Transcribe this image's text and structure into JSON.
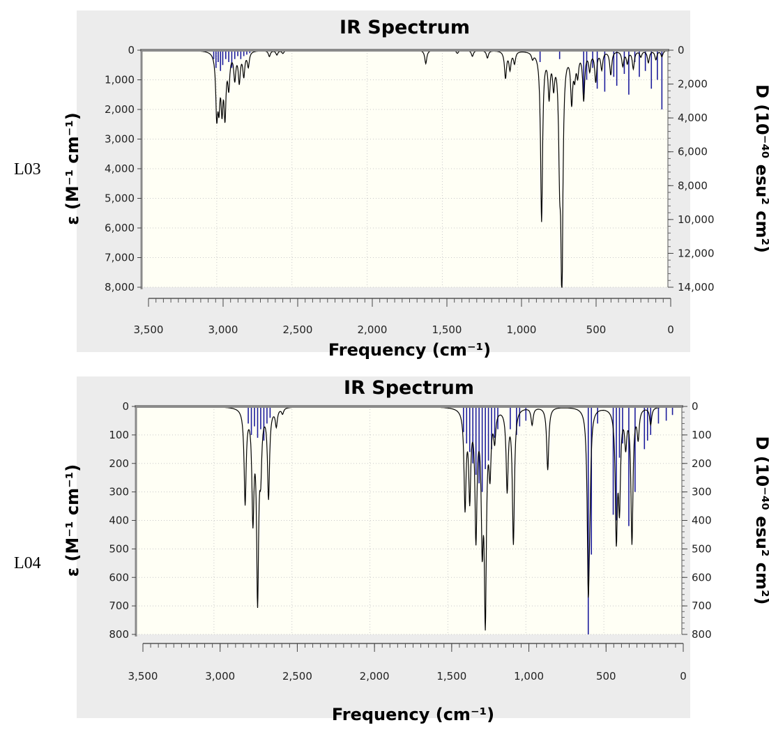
{
  "chart_data": [
    {
      "type": "line",
      "side_label": "L03",
      "title": "IR Spectrum",
      "xlabel": "Frequency (cm⁻¹)",
      "ylabel": "ε (M⁻¹ cm⁻¹)",
      "y2label": "D (10⁻⁴⁰ esu² cm²)",
      "xlim": [
        3500,
        0
      ],
      "ylim": [
        0,
        8000
      ],
      "y2lim": [
        0,
        14000
      ],
      "x_ticks": [
        "3,500",
        "3,000",
        "2,500",
        "2,000",
        "1,500",
        "1,000",
        "500",
        "0"
      ],
      "y_ticks": [
        "0",
        "1,000",
        "2,000",
        "3,000",
        "4,000",
        "5,000",
        "6,000",
        "7,000",
        "8,000"
      ],
      "y2_ticks": [
        "0",
        "2,000",
        "4,000",
        "6,000",
        "8,000",
        "10,000",
        "12,000",
        "14,000"
      ],
      "grid": true,
      "colors": {
        "spectrum": "#000000",
        "sticks": "#1c1c9c",
        "plot_bg": "#fffff5",
        "frame_bg": "#ececec"
      },
      "series": [
        {
          "name": "spectrum",
          "x": [
            3000,
            2985,
            2965,
            2945,
            2920,
            2880,
            2850,
            2820,
            2790,
            2650,
            2600,
            2560,
            1610,
            1400,
            1300,
            1200,
            1080,
            1050,
            1020,
            900,
            840,
            790,
            760,
            720,
            705,
            640,
            620,
            600,
            560,
            520,
            480,
            440,
            380,
            300,
            270,
            230,
            180,
            130,
            80,
            40
          ],
          "y": [
            2000,
            1500,
            1700,
            2000,
            1100,
            900,
            1000,
            800,
            500,
            200,
            150,
            100,
            450,
            100,
            200,
            250,
            900,
            600,
            400,
            200,
            5700,
            1400,
            1000,
            3200,
            7800,
            1600,
            700,
            700,
            1600,
            600,
            1000,
            600,
            800,
            500,
            400,
            600,
            200,
            400,
            300,
            200
          ]
        },
        {
          "name": "sticks",
          "x": [
            3020,
            3005,
            2990,
            2975,
            2960,
            2940,
            2920,
            2900,
            2880,
            2860,
            2840,
            2820,
            2800,
            2780,
            850,
            720,
            560,
            540,
            500,
            470,
            420,
            360,
            340,
            290,
            260,
            220,
            190,
            150,
            110,
            70,
            40
          ],
          "y": [
            300,
            600,
            400,
            700,
            500,
            300,
            400,
            600,
            300,
            200,
            300,
            200,
            150,
            100,
            400,
            300,
            1500,
            1000,
            600,
            1300,
            1400,
            900,
            1200,
            800,
            1500,
            400,
            900,
            700,
            1300,
            1000,
            2000
          ]
        }
      ]
    },
    {
      "type": "line",
      "side_label": "L04",
      "title": "IR Spectrum",
      "xlabel": "Frequency (cm⁻¹)",
      "ylabel": "ε (M⁻¹ cm⁻¹)",
      "y2label": "D (10⁻⁴⁰ esu² cm²)",
      "xlim": [
        3500,
        0
      ],
      "ylim": [
        0,
        800
      ],
      "y2lim": [
        0,
        800
      ],
      "x_ticks": [
        "3,500",
        "3,000",
        "2,500",
        "2,000",
        "1,500",
        "1,000",
        "500",
        "0"
      ],
      "y_ticks": [
        "0",
        "100",
        "200",
        "300",
        "400",
        "500",
        "600",
        "700",
        "800"
      ],
      "y2_ticks": [
        "0",
        "100",
        "200",
        "300",
        "400",
        "500",
        "600",
        "700",
        "800"
      ],
      "grid": true,
      "colors": {
        "spectrum": "#000000",
        "sticks": "#1c1c9c",
        "plot_bg": "#fffff5",
        "frame_bg": "#ececec"
      },
      "series": [
        {
          "name": "spectrum",
          "x": [
            2800,
            2750,
            2720,
            2700,
            2650,
            2600,
            2560,
            1390,
            1360,
            1320,
            1280,
            1260,
            1230,
            1200,
            1120,
            1080,
            960,
            860,
            600,
            590,
            420,
            400,
            360,
            320,
            280,
            200
          ],
          "y": [
            330,
            370,
            650,
            180,
            310,
            60,
            20,
            340,
            300,
            440,
            420,
            700,
            200,
            100,
            280,
            470,
            60,
            220,
            590,
            200,
            440,
            320,
            120,
            470,
            100,
            60
          ]
        },
        {
          "name": "sticks",
          "x": [
            2780,
            2760,
            2740,
            2720,
            2700,
            2680,
            2660,
            2640,
            1400,
            1380,
            1360,
            1340,
            1320,
            1300,
            1280,
            1260,
            1240,
            1220,
            1200,
            1180,
            1100,
            1060,
            1040,
            1000,
            600,
            580,
            540,
            440,
            420,
            400,
            380,
            340,
            300,
            240,
            220,
            200,
            150,
            100,
            60
          ],
          "y": [
            60,
            100,
            70,
            110,
            80,
            120,
            60,
            40,
            90,
            130,
            160,
            200,
            240,
            270,
            300,
            220,
            190,
            150,
            110,
            80,
            80,
            100,
            70,
            50,
            800,
            520,
            60,
            380,
            400,
            180,
            130,
            420,
            300,
            150,
            120,
            100,
            60,
            50,
            30
          ]
        }
      ]
    }
  ]
}
